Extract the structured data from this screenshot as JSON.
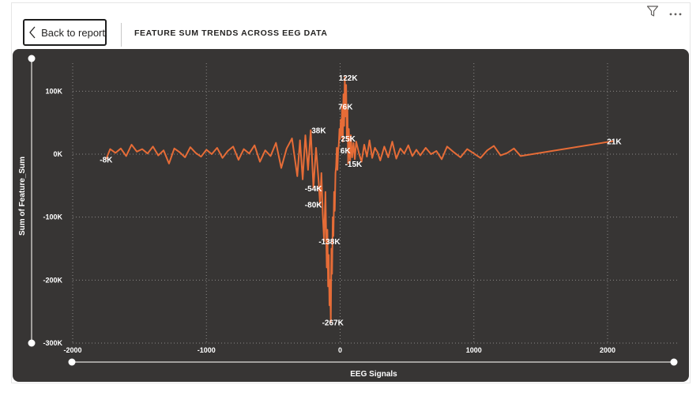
{
  "header": {
    "back_label": "Back to report",
    "title": "FEATURE SUM TRENDS ACROSS EEG DATA"
  },
  "icons": {
    "filter": "filter-icon",
    "more": "more-options-icon",
    "back": "chevron-left-icon"
  },
  "colors": {
    "background": "#373534",
    "line": "#E66C37",
    "text": "#FFFFFF",
    "grid": "#8a8886"
  },
  "chart_data": {
    "type": "line",
    "title": "",
    "xlabel": "EEG Signals",
    "ylabel": "Sum of Feature_Sum",
    "xlim": [
      -2000,
      2500
    ],
    "ylim": [
      -300000,
      130000
    ],
    "x_ticks": [
      -2000,
      -1000,
      0,
      1000,
      2000
    ],
    "x_tick_labels": [
      "-2000",
      "-1000",
      "0",
      "1000",
      "2000"
    ],
    "y_ticks": [
      100000,
      0,
      -100000,
      -200000,
      -300000
    ],
    "y_tick_labels": [
      "100K",
      "0K",
      "-100K",
      "-200K",
      "-300K"
    ],
    "grid": true,
    "series": [
      {
        "color": "#E66C37",
        "x": [
          -1750,
          -1720,
          -1680,
          -1640,
          -1600,
          -1560,
          -1520,
          -1480,
          -1440,
          -1400,
          -1360,
          -1320,
          -1280,
          -1240,
          -1200,
          -1160,
          -1120,
          -1080,
          -1040,
          -1000,
          -960,
          -920,
          -880,
          -840,
          -800,
          -760,
          -720,
          -680,
          -640,
          -600,
          -560,
          -520,
          -480,
          -440,
          -400,
          -360,
          -320,
          -300,
          -280,
          -260,
          -240,
          -220,
          -200,
          -180,
          -160,
          -150,
          -140,
          -130,
          -120,
          -110,
          -100,
          -95,
          -90,
          -85,
          -80,
          -75,
          -70,
          -65,
          -60,
          -55,
          -50,
          -45,
          -40,
          -35,
          -30,
          -25,
          -20,
          -15,
          -10,
          -5,
          0,
          5,
          10,
          15,
          20,
          25,
          30,
          35,
          40,
          45,
          50,
          55,
          60,
          65,
          70,
          75,
          80,
          90,
          100,
          110,
          120,
          140,
          160,
          180,
          200,
          220,
          240,
          260,
          280,
          300,
          330,
          360,
          390,
          420,
          450,
          480,
          510,
          540,
          570,
          600,
          640,
          680,
          720,
          760,
          800,
          850,
          900,
          950,
          1000,
          1050,
          1100,
          1150,
          1200,
          1250,
          1300,
          1350,
          2050
        ],
        "values": [
          -8000,
          8000,
          2000,
          9000,
          -3000,
          15000,
          4000,
          8000,
          1000,
          12000,
          -2000,
          6000,
          -15000,
          9000,
          3000,
          -5000,
          11000,
          2000,
          -4000,
          7000,
          0,
          10000,
          -6000,
          5000,
          12000,
          -9000,
          8000,
          1000,
          14000,
          -12000,
          6000,
          -3000,
          18000,
          -22000,
          9000,
          25000,
          -35000,
          22000,
          -40000,
          30000,
          -25000,
          38000,
          -54000,
          10000,
          -45000,
          -80000,
          -30000,
          -95000,
          -138000,
          -60000,
          -180000,
          -120000,
          -210000,
          -160000,
          -240000,
          -200000,
          -267000,
          -150000,
          -190000,
          -100000,
          -130000,
          -60000,
          -90000,
          -30000,
          -20000,
          10000,
          -25000,
          6000,
          15000,
          40000,
          25000,
          55000,
          30000,
          76000,
          20000,
          95000,
          45000,
          122000,
          60000,
          110000,
          25000,
          70000,
          -15000,
          40000,
          6000,
          -10000,
          30000,
          -5000,
          18000,
          -8000,
          20000,
          2000,
          -12000,
          15000,
          -4000,
          22000,
          -6000,
          10000,
          3000,
          -10000,
          12000,
          -5000,
          20000,
          -7000,
          9000,
          1000,
          14000,
          -3000,
          7000,
          -2000,
          10000,
          0,
          5000,
          -8000,
          12000,
          3000,
          -5000,
          8000,
          1000,
          -6000,
          6000,
          13000,
          -2000,
          2000,
          9000,
          -3000,
          21000
        ]
      }
    ],
    "annotations": [
      {
        "x": -1750,
        "y": -8000,
        "text": "-8K"
      },
      {
        "x": -160,
        "y": 38000,
        "text": "38K"
      },
      {
        "x": -200,
        "y": -54000,
        "text": "-54K"
      },
      {
        "x": -200,
        "y": -80000,
        "text": "-80K"
      },
      {
        "x": -80,
        "y": -138000,
        "text": "-138K"
      },
      {
        "x": -55,
        "y": -267000,
        "text": "-267K"
      },
      {
        "x": 60,
        "y": 122000,
        "text": "122K"
      },
      {
        "x": 40,
        "y": 76000,
        "text": "76K"
      },
      {
        "x": 60,
        "y": 25000,
        "text": "25K"
      },
      {
        "x": 40,
        "y": 6000,
        "text": "6K"
      },
      {
        "x": 100,
        "y": -15000,
        "text": "-15K"
      },
      {
        "x": 2050,
        "y": 21000,
        "text": "21K"
      }
    ]
  }
}
